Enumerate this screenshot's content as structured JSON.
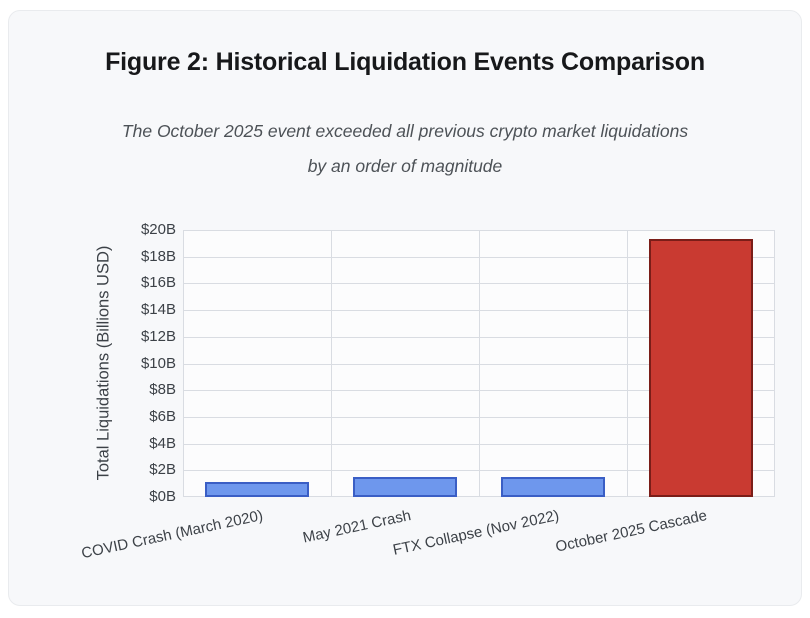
{
  "page": {
    "background": "#ffffff",
    "card_background": "#f7f8fa",
    "card_border_color": "#e9ebee"
  },
  "header": {
    "title": "Figure 2: Historical Liquidation Events Comparison",
    "subtitle_line1": "The October 2025 event exceeded all previous crypto market liquidations",
    "subtitle_line2": "by an order of magnitude"
  },
  "chart_data": {
    "type": "bar",
    "title": "",
    "xlabel": "",
    "ylabel": "Total Liquidations (Billions USD)",
    "categories": [
      "COVID Crash (March 2020)",
      "May 2021 Crash",
      "FTX Collapse (Nov 2022)",
      "October 2025 Cascade"
    ],
    "values": [
      1.1,
      1.5,
      1.5,
      19.3
    ],
    "ylim": [
      0,
      20
    ],
    "ytick_step": 2,
    "ytick_prefix": "$",
    "ytick_suffix": "B",
    "grid": true,
    "legend": "none",
    "bar_fill_colors": [
      "#6e97ed",
      "#6e97ed",
      "#6e97ed",
      "#c93a31"
    ],
    "bar_border_colors": [
      "#3a5ec5",
      "#3a5ec5",
      "#3a5ec5",
      "#7a1d18"
    ],
    "gridline_color": "#d9dce2",
    "plot_background": "#fcfcfd",
    "axis_text_color": "#3c4147"
  }
}
